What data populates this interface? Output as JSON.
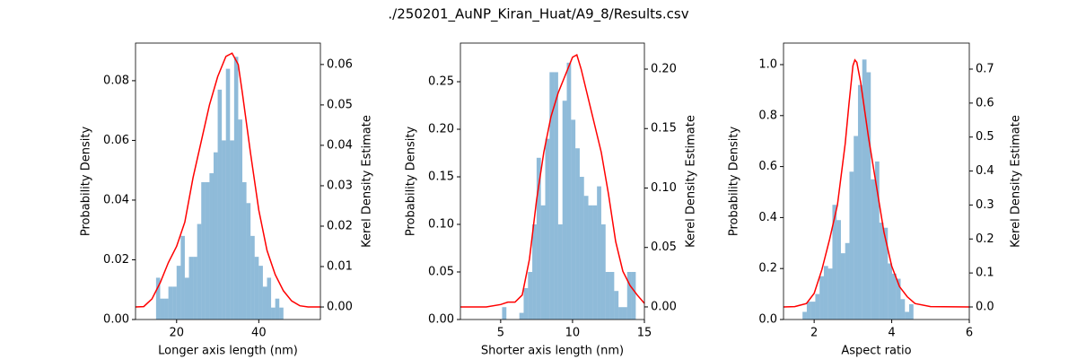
{
  "title": "./250201_AuNP_Kiran_Huat/A9_8/Results.csv",
  "chart_data": [
    {
      "type": "histogram",
      "xlabel": "Longer axis length (nm)",
      "ylabel": "Probability Density",
      "y2label": "Kerel Density Estimate",
      "color": "#1f77b4",
      "opacity": 0.5,
      "bins": [
        15,
        16,
        17,
        18,
        19,
        20,
        21,
        22,
        23,
        24,
        25,
        26,
        27,
        28,
        29,
        30,
        31,
        32,
        33,
        34,
        35,
        36,
        37,
        38,
        39,
        40,
        41,
        42,
        43,
        44,
        45,
        46
      ],
      "values": [
        0.014,
        0.007,
        0.007,
        0.011,
        0.011,
        0.018,
        0.028,
        0.014,
        0.021,
        0.021,
        0.032,
        0.046,
        0.046,
        0.049,
        0.056,
        0.077,
        0.06,
        0.084,
        0.06,
        0.088,
        0.067,
        0.046,
        0.039,
        0.028,
        0.021,
        0.018,
        0.011,
        0.014,
        0.004,
        0.007,
        0.004
      ],
      "kde": {
        "color": "#ff0000",
        "axis": "y2",
        "x": [
          10,
          12,
          14,
          16,
          18,
          20,
          22,
          24,
          26,
          28,
          30,
          32,
          33.5,
          35,
          36,
          38,
          40,
          42,
          44,
          46,
          48,
          50,
          52,
          55
        ],
        "values": [
          0.0,
          0.0001,
          0.002,
          0.006,
          0.011,
          0.015,
          0.021,
          0.032,
          0.041,
          0.05,
          0.057,
          0.062,
          0.0628,
          0.06,
          0.053,
          0.038,
          0.024,
          0.014,
          0.008,
          0.004,
          0.0015,
          0.0003,
          0.0,
          0.0
        ]
      },
      "xlim": [
        10,
        55
      ],
      "xticks": [
        20,
        40
      ],
      "ylim": [
        0,
        0.0926
      ],
      "yticks": [
        {
          "value": 0,
          "label": "0.00"
        },
        {
          "value": 0.02,
          "label": "0.02"
        },
        {
          "value": 0.04,
          "label": "0.04"
        },
        {
          "value": 0.06,
          "label": "0.06"
        },
        {
          "value": 0.08,
          "label": "0.08"
        }
      ],
      "y2lim": [
        -0.0031,
        0.0653
      ],
      "y2ticks": [
        {
          "value": 0,
          "label": "0.00"
        },
        {
          "value": 0.01,
          "label": "0.01"
        },
        {
          "value": 0.02,
          "label": "0.02"
        },
        {
          "value": 0.03,
          "label": "0.03"
        },
        {
          "value": 0.04,
          "label": "0.04"
        },
        {
          "value": 0.05,
          "label": "0.05"
        },
        {
          "value": 0.06,
          "label": "0.06"
        }
      ]
    },
    {
      "type": "histogram",
      "xlabel": "Shorter axis length (nm)",
      "ylabel": "Probability Density",
      "y2label": "Kerel Density Estimate",
      "color": "#1f77b4",
      "opacity": 0.5,
      "bins": [
        5.1,
        5.4,
        5.7,
        6.0,
        6.3,
        6.6,
        6.9,
        7.2,
        7.5,
        7.8,
        8.1,
        8.4,
        8.7,
        9.0,
        9.3,
        9.6,
        9.9,
        10.2,
        10.5,
        10.8,
        11.1,
        11.4,
        11.7,
        12.0,
        12.3,
        12.6,
        12.9,
        13.2,
        13.5,
        13.8,
        14.1,
        14.4
      ],
      "values": [
        0.013,
        0,
        0,
        0,
        0.007,
        0.033,
        0.05,
        0.1,
        0.17,
        0.12,
        0.19,
        0.26,
        0.26,
        0.1,
        0.23,
        0.27,
        0.21,
        0.18,
        0.15,
        0.13,
        0.12,
        0.12,
        0.14,
        0.1,
        0.05,
        0.05,
        0.03,
        0.013,
        0.013,
        0.05,
        0.05
      ],
      "kde": {
        "color": "#ff0000",
        "axis": "y2",
        "x": [
          2.2,
          4,
          5,
          5.5,
          6,
          6.5,
          7,
          7.5,
          8,
          8.5,
          9,
          9.5,
          10,
          10.3,
          10.6,
          11,
          11.5,
          12,
          12.5,
          13,
          13.5,
          14,
          14.5,
          15
        ],
        "values": [
          0.0,
          0.0,
          0.002,
          0.004,
          0.004,
          0.01,
          0.04,
          0.09,
          0.13,
          0.16,
          0.18,
          0.195,
          0.21,
          0.212,
          0.2,
          0.18,
          0.155,
          0.13,
          0.095,
          0.055,
          0.03,
          0.018,
          0.01,
          0.003
        ]
      },
      "xlim": [
        2.2,
        15
      ],
      "xticks": [
        5,
        10,
        15
      ],
      "ylim": [
        0,
        0.2906
      ],
      "yticks": [
        {
          "value": 0,
          "label": "0.00"
        },
        {
          "value": 0.05,
          "label": "0.05"
        },
        {
          "value": 0.1,
          "label": "0.10"
        },
        {
          "value": 0.15,
          "label": "0.15"
        },
        {
          "value": 0.2,
          "label": "0.20"
        },
        {
          "value": 0.25,
          "label": "0.25"
        }
      ],
      "y2lim": [
        -0.0106,
        0.2219
      ],
      "y2ticks": [
        {
          "value": 0,
          "label": "0.00"
        },
        {
          "value": 0.05,
          "label": "0.05"
        },
        {
          "value": 0.1,
          "label": "0.10"
        },
        {
          "value": 0.15,
          "label": "0.15"
        },
        {
          "value": 0.2,
          "label": "0.20"
        }
      ]
    },
    {
      "type": "histogram",
      "xlabel": "Aspect ratio",
      "ylabel": "Probability Density",
      "y2label": "Kerel Density Estimate",
      "color": "#1f77b4",
      "opacity": 0.5,
      "bins": [
        1.7,
        1.81,
        1.92,
        2.03,
        2.14,
        2.25,
        2.36,
        2.47,
        2.58,
        2.69,
        2.8,
        2.91,
        3.02,
        3.13,
        3.24,
        3.35,
        3.46,
        3.57,
        3.68,
        3.79,
        3.9,
        4.01,
        4.12,
        4.23,
        4.34,
        4.45,
        4.56
      ],
      "values": [
        0.03,
        0.07,
        0.07,
        0.1,
        0.17,
        0.21,
        0.2,
        0.45,
        0.39,
        0.26,
        0.3,
        0.58,
        0.72,
        0.92,
        1.02,
        0.97,
        0.55,
        0.62,
        0.38,
        0.36,
        0.22,
        0.18,
        0.16,
        0.08,
        0.03,
        0.06
      ],
      "kde": {
        "color": "#ff0000",
        "axis": "y2",
        "x": [
          1.21,
          1.5,
          1.8,
          2.0,
          2.2,
          2.4,
          2.6,
          2.8,
          2.9,
          3.0,
          3.05,
          3.1,
          3.2,
          3.4,
          3.6,
          3.8,
          4.0,
          4.2,
          4.4,
          4.6,
          5.0,
          6.0
        ],
        "values": [
          0.0,
          0.001,
          0.01,
          0.04,
          0.11,
          0.2,
          0.3,
          0.48,
          0.6,
          0.71,
          0.727,
          0.72,
          0.66,
          0.5,
          0.36,
          0.22,
          0.12,
          0.06,
          0.03,
          0.01,
          0.001,
          0.0
        ]
      },
      "xlim": [
        1.21,
        6
      ],
      "xticks": [
        2,
        4,
        6
      ],
      "ylim": [
        0,
        1.0845
      ],
      "yticks": [
        {
          "value": 0,
          "label": "0.0"
        },
        {
          "value": 0.2,
          "label": "0.2"
        },
        {
          "value": 0.4,
          "label": "0.4"
        },
        {
          "value": 0.6,
          "label": "0.6"
        },
        {
          "value": 0.8,
          "label": "0.8"
        },
        {
          "value": 1.0,
          "label": "1.0"
        }
      ],
      "y2lim": [
        -0.037,
        0.7766
      ],
      "y2ticks": [
        {
          "value": 0,
          "label": "0.0"
        },
        {
          "value": 0.1,
          "label": "0.1"
        },
        {
          "value": 0.2,
          "label": "0.2"
        },
        {
          "value": 0.3,
          "label": "0.3"
        },
        {
          "value": 0.4,
          "label": "0.4"
        },
        {
          "value": 0.5,
          "label": "0.5"
        },
        {
          "value": 0.6,
          "label": "0.6"
        },
        {
          "value": 0.7,
          "label": "0.7"
        }
      ]
    }
  ]
}
